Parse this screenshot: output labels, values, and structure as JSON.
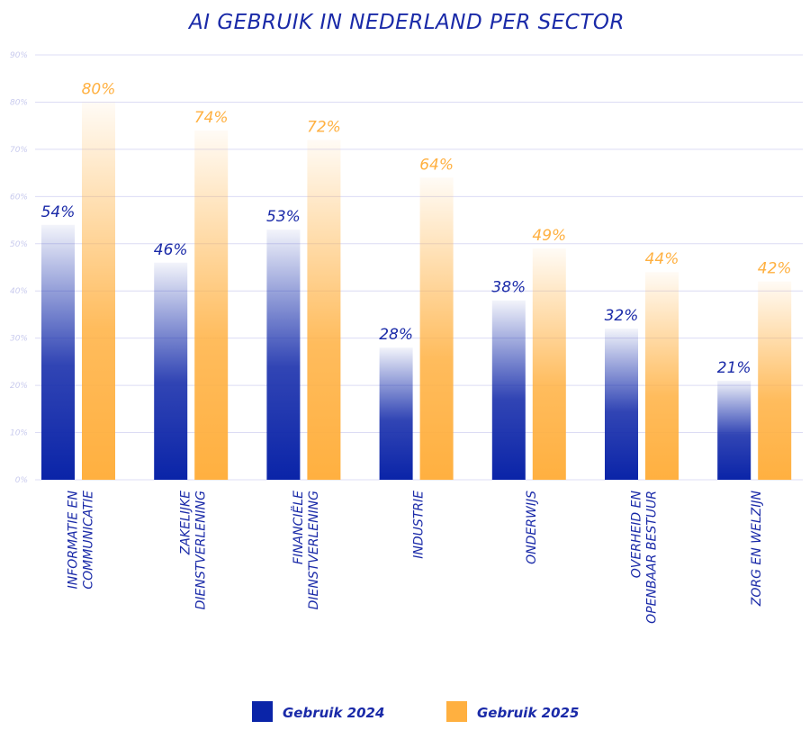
{
  "chart_data": {
    "type": "bar",
    "title": "AI GEBRUIK IN NEDERLAND PER SECTOR",
    "categories": [
      [
        "INFORMATIE EN",
        "COMMUNICATIE"
      ],
      [
        "ZAKELIJKE",
        "DIENSTVERLENING"
      ],
      [
        "FINANCIËLE",
        "DIENSTVERLENING"
      ],
      [
        "INDUSTRIE"
      ],
      [
        "ONDERWIJS"
      ],
      [
        "OVERHEID EN",
        "OPENBAAR BESTUUR"
      ],
      [
        "ZORG EN WELZIJN"
      ]
    ],
    "series": [
      {
        "name": "Gebruik 2024",
        "values": [
          54,
          46,
          53,
          28,
          38,
          32,
          21
        ],
        "color": "#0a24a8"
      },
      {
        "name": "Gebruik 2025",
        "values": [
          80,
          74,
          72,
          64,
          49,
          44,
          42
        ],
        "color": "#ffb040"
      }
    ],
    "ylim": [
      0,
      90
    ],
    "yticks": [
      "0%",
      "10%",
      "20%",
      "30%",
      "40%",
      "50%",
      "60%",
      "70%",
      "80%",
      "90%"
    ],
    "value_suffix": "%",
    "grid": true,
    "legend": "bottom",
    "xlabel": "",
    "ylabel": ""
  }
}
